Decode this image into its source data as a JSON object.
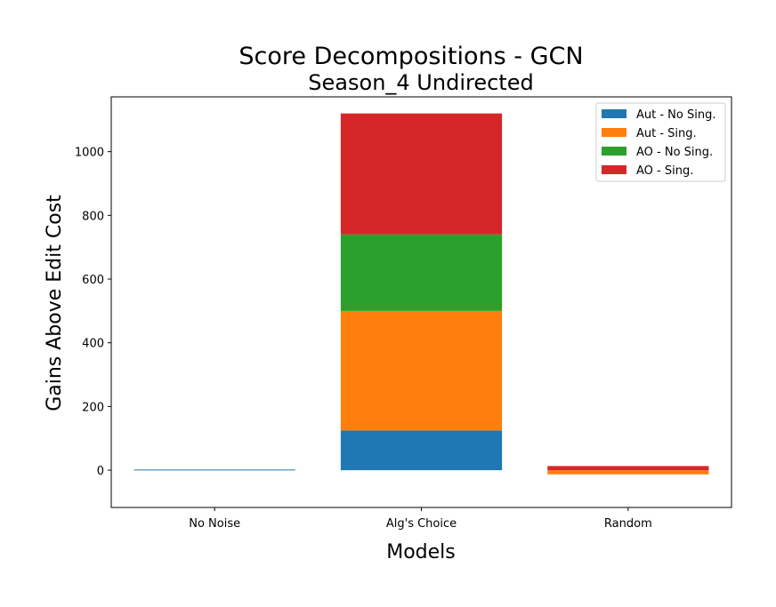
{
  "chart_data": {
    "type": "bar",
    "stacked": true,
    "title": "Score Decompositions - GCN",
    "subtitle": "Season_4 Undirected",
    "xlabel": "Models",
    "ylabel": "Gains Above Edit Cost",
    "categories": [
      "No Noise",
      "Alg's Choice",
      "Random"
    ],
    "ylim": [
      -117,
      1172
    ],
    "yticks": [
      0,
      200,
      400,
      600,
      800,
      1000
    ],
    "grid": false,
    "legend_position": "top-right",
    "series": [
      {
        "name": "Aut - No Sing.",
        "color": "#1f77b4",
        "values": [
          2,
          125,
          0
        ]
      },
      {
        "name": "Aut - Sing.",
        "color": "#ff7f0e",
        "values": [
          0,
          375,
          -13
        ]
      },
      {
        "name": "AO - No Sing.",
        "color": "#2ca02c",
        "values": [
          0,
          240,
          0
        ]
      },
      {
        "name": "AO - Sing.",
        "color": "#d62728",
        "values": [
          0,
          380,
          13
        ]
      }
    ]
  }
}
